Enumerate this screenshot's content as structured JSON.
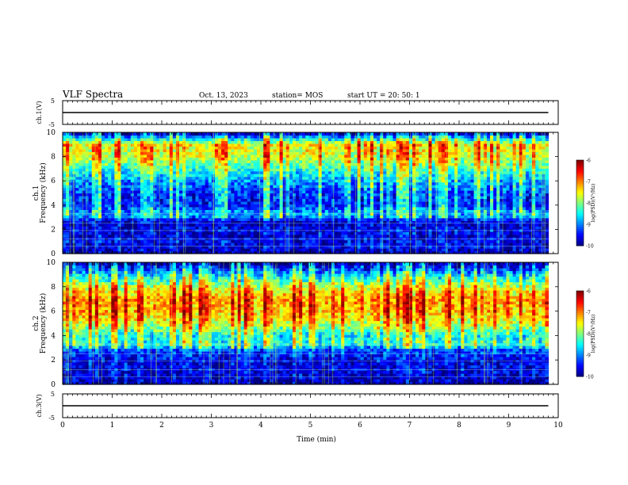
{
  "header": {
    "title": "VLF Spectra",
    "date": "Oct. 13, 2023",
    "station": "station= MOS",
    "start": "start  UT =   20: 50: 1"
  },
  "chart_data": [
    {
      "type": "line",
      "panel": "ch1-waveform",
      "ylabel": "ch.1(V)",
      "ylim": [
        -5,
        5
      ],
      "yticks": [
        "5",
        "-5"
      ],
      "xlim": [
        0,
        10
      ],
      "series": [
        {
          "values_note": "",
          "x": [
            0,
            9.8
          ],
          "y": [
            0,
            0
          ]
        }
      ]
    },
    {
      "type": "heatmap",
      "panel": "ch1-spectrogram",
      "ylabel": "ch.1\nFrequency (kHz)",
      "ylabel_lines": [
        "ch.1",
        "Frequency (kHz)"
      ],
      "yticks": [
        "0",
        "2",
        "4",
        "6",
        "8",
        "10"
      ],
      "ylim": [
        0,
        10
      ],
      "xlim": [
        0,
        10
      ],
      "data_extent_x": [
        0,
        9.8
      ],
      "colorbar": {
        "label": "log(PSD)(V²/Hz)",
        "ticks": [
          "-6",
          "-7",
          "-8",
          "-9",
          "-10"
        ],
        "range": [
          -10,
          -6
        ]
      },
      "band_profile_db": [
        {
          "f": 0.0,
          "v": -9.6
        },
        {
          "f": 0.5,
          "v": -9.4
        },
        {
          "f": 1.0,
          "v": -9.3
        },
        {
          "f": 1.5,
          "v": -9.4
        },
        {
          "f": 2.0,
          "v": -9.3
        },
        {
          "f": 2.5,
          "v": -9.5
        },
        {
          "f": 3.0,
          "v": -9.0
        },
        {
          "f": 3.4,
          "v": -8.7
        },
        {
          "f": 4.0,
          "v": -9.3
        },
        {
          "f": 5.0,
          "v": -9.2
        },
        {
          "f": 6.0,
          "v": -8.8
        },
        {
          "f": 7.0,
          "v": -8.2
        },
        {
          "f": 8.0,
          "v": -7.6
        },
        {
          "f": 9.0,
          "v": -7.4
        },
        {
          "f": 9.5,
          "v": -8.5
        },
        {
          "f": 10.0,
          "v": -9.8
        }
      ]
    },
    {
      "type": "heatmap",
      "panel": "ch2-spectrogram",
      "ylabel_lines": [
        "ch.2",
        "Frequency (kHz)"
      ],
      "yticks": [
        "0",
        "2",
        "4",
        "6",
        "8",
        "10"
      ],
      "ylim": [
        0,
        10
      ],
      "xlim": [
        0,
        10
      ],
      "data_extent_x": [
        0,
        9.8
      ],
      "colorbar": {
        "label": "log(PSD)(V²/Hz)",
        "ticks": [
          "-6",
          "-7",
          "-8",
          "-9",
          "-10"
        ],
        "range": [
          -10,
          -6
        ]
      },
      "band_profile_db": [
        {
          "f": 0.0,
          "v": -9.6
        },
        {
          "f": 1.0,
          "v": -9.4
        },
        {
          "f": 2.0,
          "v": -9.3
        },
        {
          "f": 3.0,
          "v": -8.9
        },
        {
          "f": 3.3,
          "v": -8.3
        },
        {
          "f": 4.0,
          "v": -8.4
        },
        {
          "f": 5.0,
          "v": -7.6
        },
        {
          "f": 6.0,
          "v": -7.1
        },
        {
          "f": 7.0,
          "v": -7.0
        },
        {
          "f": 8.0,
          "v": -7.6
        },
        {
          "f": 9.0,
          "v": -8.6
        },
        {
          "f": 10.0,
          "v": -9.8
        }
      ]
    },
    {
      "type": "line",
      "panel": "ch3-waveform",
      "ylabel": "ch.3(V)",
      "ylim": [
        -5,
        5
      ],
      "yticks": [
        "5",
        "-5"
      ],
      "xlim": [
        0,
        10
      ],
      "xlabel": "Time (min)",
      "xticks": [
        "0",
        "1",
        "2",
        "3",
        "4",
        "5",
        "6",
        "7",
        "8",
        "9",
        "10"
      ],
      "series": [
        {
          "x": [
            0,
            9.8
          ],
          "y": [
            0,
            0
          ]
        }
      ]
    }
  ],
  "colors": {
    "axis": "#000000",
    "background": "#ffffff"
  }
}
